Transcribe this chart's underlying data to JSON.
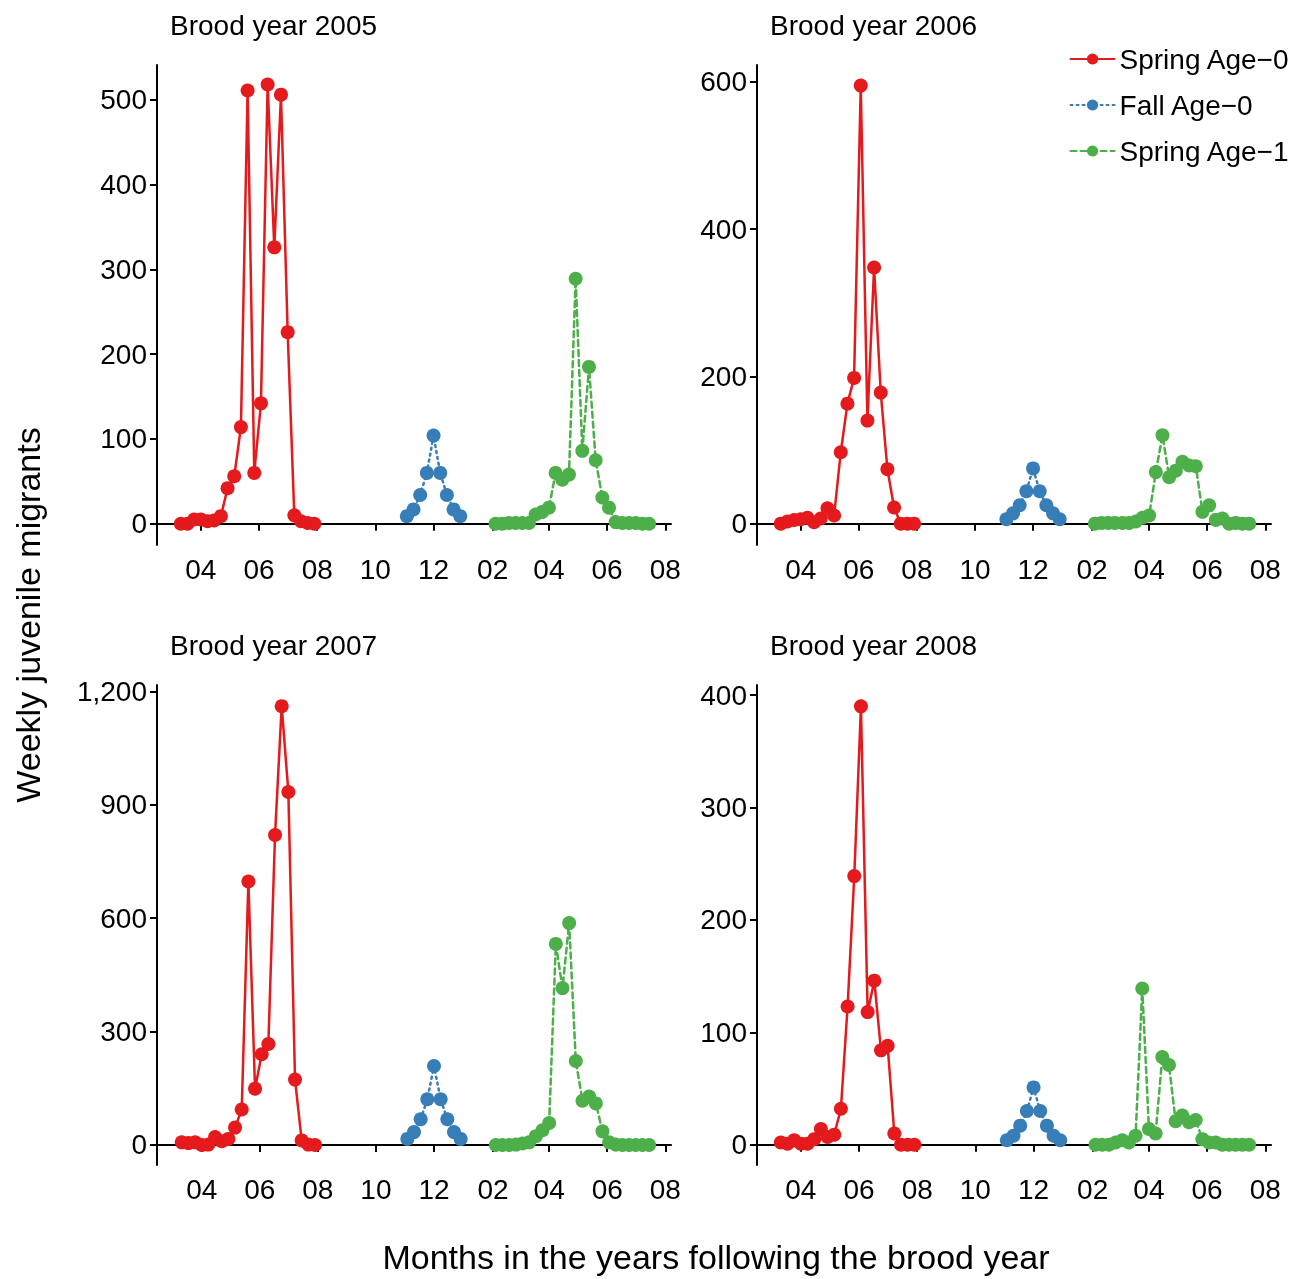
{
  "chart_data": [
    {
      "type": "line",
      "title": "Brood year 2005",
      "ylabel": "Weekly juvenile migrants",
      "marker": "circle",
      "legend": false,
      "grid": false,
      "xlim": [
        "2006-02-14",
        "2007-08-07"
      ],
      "xticks": [
        {
          "value": "2006-04-01",
          "label": "04"
        },
        {
          "value": "2006-06-01",
          "label": "06"
        },
        {
          "value": "2006-08-01",
          "label": "08"
        },
        {
          "value": "2006-10-01",
          "label": "10"
        },
        {
          "value": "2006-12-01",
          "label": "12"
        },
        {
          "value": "2007-02-01",
          "label": "02"
        },
        {
          "value": "2007-04-01",
          "label": "04"
        },
        {
          "value": "2007-06-01",
          "label": "06"
        },
        {
          "value": "2007-08-01",
          "label": "08"
        }
      ],
      "ylim": [
        -25,
        541
      ],
      "yticks": [
        0,
        100,
        200,
        300,
        400,
        500
      ],
      "series": [
        {
          "color": "#e41a1c",
          "line_style": "solid",
          "x": [
            "2006-03-11",
            "2006-03-18",
            "2006-03-25",
            "2006-04-01",
            "2006-04-08",
            "2006-04-15",
            "2006-04-22",
            "2006-04-29",
            "2006-05-06",
            "2006-05-13",
            "2006-05-20",
            "2006-05-27",
            "2006-06-03",
            "2006-06-10",
            "2006-06-17",
            "2006-06-24",
            "2006-07-01",
            "2006-07-08",
            "2006-07-15",
            "2006-07-22",
            "2006-07-29"
          ],
          "values": [
            0,
            0,
            5,
            5,
            3,
            4,
            9,
            42,
            56,
            114,
            511,
            60,
            142,
            518,
            326,
            506,
            226,
            10,
            3,
            1,
            0
          ]
        },
        {
          "color": "#377eb8",
          "line_style": "dotted",
          "x": [
            "2006-11-03",
            "2006-11-10",
            "2006-11-17",
            "2006-11-24",
            "2006-12-01",
            "2006-12-08",
            "2006-12-15",
            "2006-12-22",
            "2006-12-29"
          ],
          "values": [
            9,
            17,
            34,
            60,
            104,
            60,
            34,
            17,
            9
          ]
        },
        {
          "color": "#4daf4a",
          "line_style": "dashed",
          "x": [
            "2007-02-04",
            "2007-02-11",
            "2007-02-18",
            "2007-02-25",
            "2007-03-04",
            "2007-03-11",
            "2007-03-18",
            "2007-03-25",
            "2007-04-01",
            "2007-04-08",
            "2007-04-15",
            "2007-04-22",
            "2007-04-29",
            "2007-05-06",
            "2007-05-13",
            "2007-05-20",
            "2007-05-27",
            "2007-06-03",
            "2007-06-10",
            "2007-06-17",
            "2007-06-24",
            "2007-07-01",
            "2007-07-08",
            "2007-07-15"
          ],
          "values": [
            0,
            0,
            1,
            1,
            1,
            1,
            11,
            14,
            19,
            60,
            52,
            58,
            289,
            86,
            185,
            75,
            31,
            19,
            2,
            1,
            1,
            1,
            0,
            0
          ]
        }
      ]
    },
    {
      "type": "line",
      "title": "Brood year 2006",
      "marker": "circle",
      "legend": "top right",
      "grid": false,
      "xlim": [
        "2007-02-14",
        "2008-08-07"
      ],
      "xticks": [
        {
          "value": "2007-04-01",
          "label": "04"
        },
        {
          "value": "2007-06-01",
          "label": "06"
        },
        {
          "value": "2007-08-01",
          "label": "08"
        },
        {
          "value": "2007-10-01",
          "label": "10"
        },
        {
          "value": "2007-12-01",
          "label": "12"
        },
        {
          "value": "2008-02-01",
          "label": "02"
        },
        {
          "value": "2008-04-01",
          "label": "04"
        },
        {
          "value": "2008-06-01",
          "label": "06"
        },
        {
          "value": "2008-08-01",
          "label": "08"
        }
      ],
      "ylim": [
        -29,
        623
      ],
      "yticks": [
        0,
        200,
        400,
        600
      ],
      "series": [
        {
          "name": "Spring Age−0",
          "color": "#e41a1c",
          "line_style": "solid",
          "x": [
            "2007-03-11",
            "2007-03-18",
            "2007-03-25",
            "2007-04-01",
            "2007-04-08",
            "2007-04-15",
            "2007-04-22",
            "2007-04-29",
            "2007-05-06",
            "2007-05-13",
            "2007-05-20",
            "2007-05-27",
            "2007-06-03",
            "2007-06-10",
            "2007-06-17",
            "2007-06-24",
            "2007-07-01",
            "2007-07-08",
            "2007-07-15",
            "2007-07-22",
            "2007-07-29"
          ],
          "values": [
            0,
            3,
            5,
            6,
            8,
            2,
            7,
            21,
            11,
            97,
            163,
            198,
            595,
            140,
            348,
            178,
            74,
            22,
            0,
            0,
            0
          ]
        },
        {
          "name": "Fall Age−0",
          "color": "#377eb8",
          "line_style": "dotted",
          "x": [
            "2007-11-03",
            "2007-11-10",
            "2007-11-17",
            "2007-11-24",
            "2007-12-01",
            "2007-12-08",
            "2007-12-15",
            "2007-12-22",
            "2007-12-29"
          ],
          "values": [
            6,
            14,
            25,
            44,
            75,
            44,
            25,
            14,
            6
          ]
        },
        {
          "name": "Spring Age−1",
          "color": "#4daf4a",
          "line_style": "dashed",
          "x": [
            "2008-02-04",
            "2008-02-11",
            "2008-02-18",
            "2008-02-25",
            "2008-03-04",
            "2008-03-11",
            "2008-03-18",
            "2008-03-25",
            "2008-04-01",
            "2008-04-08",
            "2008-04-15",
            "2008-04-22",
            "2008-04-29",
            "2008-05-06",
            "2008-05-13",
            "2008-05-20",
            "2008-05-27",
            "2008-06-03",
            "2008-06-10",
            "2008-06-17",
            "2008-06-24",
            "2008-07-01",
            "2008-07-08",
            "2008-07-15"
          ],
          "values": [
            0,
            1,
            1,
            1,
            1,
            1,
            3,
            8,
            11,
            70,
            120,
            63,
            72,
            84,
            79,
            78,
            16,
            25,
            5,
            7,
            0,
            1,
            0,
            0
          ]
        }
      ]
    },
    {
      "type": "line",
      "title": "Brood year 2007",
      "xlabel": "Months in the years following the brood year",
      "marker": "circle",
      "legend": false,
      "grid": false,
      "xlim": [
        "2008-02-14",
        "2009-08-07"
      ],
      "xticks": [
        {
          "value": "2008-04-01",
          "label": "04"
        },
        {
          "value": "2008-06-01",
          "label": "06"
        },
        {
          "value": "2008-08-01",
          "label": "08"
        },
        {
          "value": "2008-10-01",
          "label": "10"
        },
        {
          "value": "2008-12-01",
          "label": "12"
        },
        {
          "value": "2009-02-01",
          "label": "02"
        },
        {
          "value": "2009-04-01",
          "label": "04"
        },
        {
          "value": "2009-06-01",
          "label": "06"
        },
        {
          "value": "2009-08-01",
          "label": "08"
        }
      ],
      "ylim": [
        -53,
        1217
      ],
      "yticks": [
        0,
        300,
        600,
        900,
        {
          "value": 1200,
          "label": "1,200"
        }
      ],
      "series": [
        {
          "color": "#e41a1c",
          "line_style": "solid",
          "x": [
            "2008-03-11",
            "2008-03-18",
            "2008-03-25",
            "2008-04-01",
            "2008-04-08",
            "2008-04-15",
            "2008-04-22",
            "2008-04-29",
            "2008-05-06",
            "2008-05-13",
            "2008-05-20",
            "2008-05-27",
            "2008-06-03",
            "2008-06-10",
            "2008-06-17",
            "2008-06-24",
            "2008-07-01",
            "2008-07-08",
            "2008-07-15",
            "2008-07-22",
            "2008-07-29"
          ],
          "values": [
            7,
            5,
            7,
            0,
            1,
            21,
            10,
            16,
            46,
            94,
            697,
            149,
            240,
            267,
            820,
            1161,
            934,
            173,
            12,
            1,
            0
          ]
        },
        {
          "color": "#377eb8",
          "line_style": "dotted",
          "x": [
            "2008-11-03",
            "2008-11-10",
            "2008-11-17",
            "2008-11-24",
            "2008-12-01",
            "2008-12-08",
            "2008-12-15",
            "2008-12-22",
            "2008-12-29"
          ],
          "values": [
            16,
            34,
            68,
            121,
            209,
            121,
            68,
            34,
            16
          ]
        },
        {
          "color": "#4daf4a",
          "line_style": "dashed",
          "x": [
            "2009-02-04",
            "2009-02-11",
            "2009-02-18",
            "2009-02-25",
            "2009-03-04",
            "2009-03-11",
            "2009-03-18",
            "2009-03-25",
            "2009-04-01",
            "2009-04-08",
            "2009-04-15",
            "2009-04-22",
            "2009-04-29",
            "2009-05-06",
            "2009-05-13",
            "2009-05-20",
            "2009-05-27",
            "2009-06-03",
            "2009-06-10",
            "2009-06-17",
            "2009-06-24",
            "2009-07-01",
            "2009-07-08",
            "2009-07-15"
          ],
          "values": [
            0,
            0,
            0,
            1,
            4,
            7,
            23,
            39,
            58,
            532,
            415,
            587,
            222,
            117,
            128,
            110,
            36,
            7,
            1,
            0,
            0,
            0,
            0,
            0
          ]
        }
      ]
    },
    {
      "type": "line",
      "title": "Brood year 2008",
      "marker": "circle",
      "legend": false,
      "grid": false,
      "xlim": [
        "2009-02-14",
        "2010-08-07"
      ],
      "xticks": [
        {
          "value": "2009-04-01",
          "label": "04"
        },
        {
          "value": "2009-06-01",
          "label": "06"
        },
        {
          "value": "2009-08-01",
          "label": "08"
        },
        {
          "value": "2009-10-01",
          "label": "10"
        },
        {
          "value": "2009-12-01",
          "label": "12"
        },
        {
          "value": "2010-02-01",
          "label": "02"
        },
        {
          "value": "2010-04-01",
          "label": "04"
        },
        {
          "value": "2010-06-01",
          "label": "06"
        },
        {
          "value": "2010-08-01",
          "label": "08"
        }
      ],
      "ylim": [
        -18,
        409
      ],
      "yticks": [
        0,
        100,
        200,
        300,
        400
      ],
      "series": [
        {
          "color": "#e41a1c",
          "line_style": "solid",
          "x": [
            "2009-03-11",
            "2009-03-18",
            "2009-03-25",
            "2009-04-01",
            "2009-04-08",
            "2009-04-15",
            "2009-04-22",
            "2009-04-29",
            "2009-05-06",
            "2009-05-13",
            "2009-05-20",
            "2009-05-27",
            "2009-06-03",
            "2009-06-10",
            "2009-06-17",
            "2009-06-24",
            "2009-07-01",
            "2009-07-08",
            "2009-07-15",
            "2009-07-22",
            "2009-07-29"
          ],
          "values": [
            2,
            1,
            4,
            1,
            1,
            5,
            14,
            7,
            9,
            32,
            123,
            239,
            390,
            118,
            146,
            84,
            88,
            10,
            0,
            0,
            0
          ]
        },
        {
          "color": "#377eb8",
          "line_style": "dotted",
          "x": [
            "2009-11-03",
            "2009-11-10",
            "2009-11-17",
            "2009-11-24",
            "2009-12-01",
            "2009-12-08",
            "2009-12-15",
            "2009-12-22",
            "2009-12-29"
          ],
          "values": [
            4,
            8,
            17,
            30,
            51,
            30,
            17,
            8,
            4
          ]
        },
        {
          "color": "#4daf4a",
          "line_style": "dashed",
          "x": [
            "2010-02-04",
            "2010-02-11",
            "2010-02-18",
            "2010-02-25",
            "2010-03-04",
            "2010-03-11",
            "2010-03-18",
            "2010-03-25",
            "2010-04-01",
            "2010-04-08",
            "2010-04-15",
            "2010-04-22",
            "2010-04-29",
            "2010-05-06",
            "2010-05-13",
            "2010-05-20",
            "2010-05-27",
            "2010-06-03",
            "2010-06-10",
            "2010-06-17",
            "2010-06-24",
            "2010-07-01",
            "2010-07-08",
            "2010-07-15"
          ],
          "values": [
            0,
            0,
            0,
            2,
            4,
            2,
            8,
            139,
            14,
            10,
            78,
            71,
            21,
            26,
            20,
            22,
            5,
            2,
            2,
            0,
            0,
            0,
            0,
            0
          ]
        }
      ]
    }
  ]
}
